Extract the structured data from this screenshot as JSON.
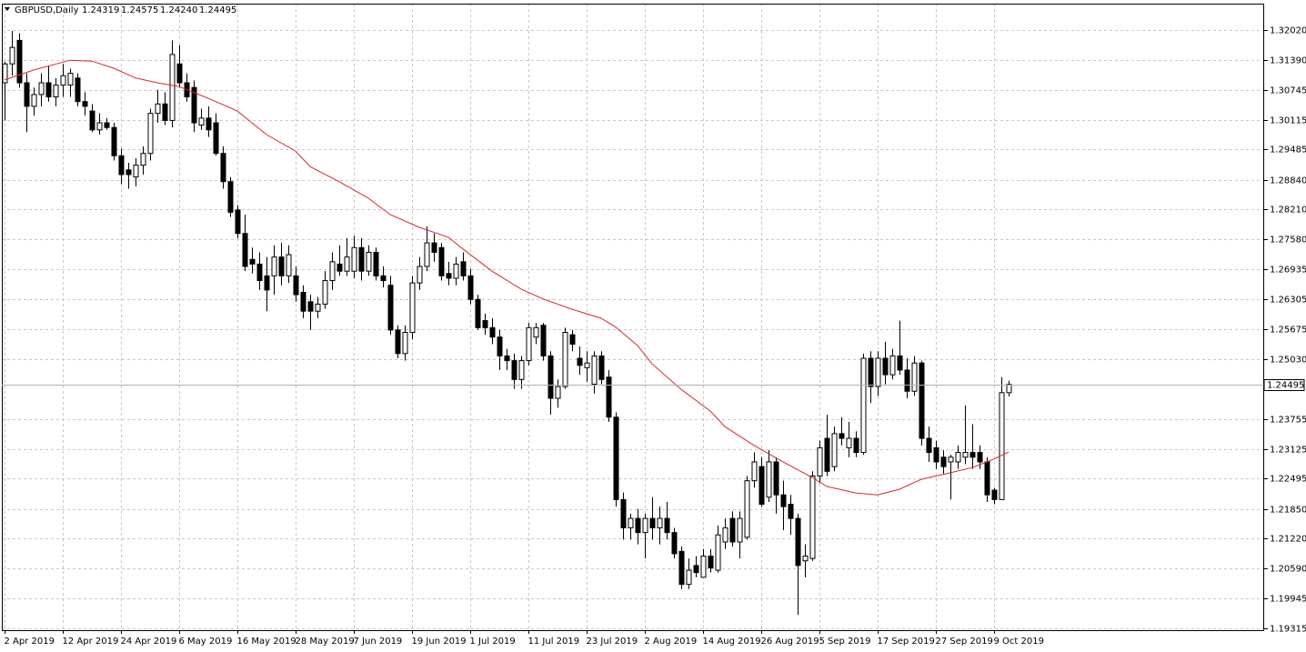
{
  "chart_data": {
    "type": "candlestick",
    "symbol": "GBPUSD,Daily",
    "last_labels": {
      "open": "1.24319",
      "high": "1.24575",
      "low": "1.24240",
      "close": "1.24495"
    },
    "categories": [
      "2 Apr 2019",
      null,
      null,
      null,
      null,
      null,
      null,
      null,
      "12 Apr 2019",
      null,
      null,
      null,
      null,
      null,
      null,
      null,
      "24 Apr 2019",
      null,
      null,
      null,
      null,
      null,
      null,
      null,
      "6 May 2019",
      null,
      null,
      null,
      null,
      null,
      null,
      null,
      "16 May 2019",
      null,
      null,
      null,
      null,
      null,
      null,
      null,
      "28 May 2019",
      null,
      null,
      null,
      null,
      null,
      null,
      null,
      "7 Jun 2019",
      null,
      null,
      null,
      null,
      null,
      null,
      null,
      "19 Jun 2019",
      null,
      null,
      null,
      null,
      null,
      null,
      null,
      "1 Jul 2019",
      null,
      null,
      null,
      null,
      null,
      null,
      null,
      "11 Jul 2019",
      null,
      null,
      null,
      null,
      null,
      null,
      null,
      "23 Jul 2019",
      null,
      null,
      null,
      null,
      null,
      null,
      null,
      "2 Aug 2019",
      null,
      null,
      null,
      null,
      null,
      null,
      null,
      "14 Aug 2019",
      null,
      null,
      null,
      null,
      null,
      null,
      null,
      "26 Aug 2019",
      null,
      null,
      null,
      null,
      null,
      null,
      null,
      "5 Sep 2019",
      null,
      null,
      null,
      null,
      null,
      null,
      null,
      "17 Sep 2019",
      null,
      null,
      null,
      null,
      null,
      null,
      null,
      "27 Sep 2019",
      null,
      null,
      null,
      null,
      null,
      null,
      null,
      "9 Oct 2019",
      null,
      null
    ],
    "open": [
      1.309,
      1.313,
      1.318,
      1.309,
      1.304,
      1.3065,
      1.309,
      1.306,
      1.3085,
      1.3085,
      1.31,
      1.305,
      1.303,
      1.299,
      1.3005,
      1.2995,
      1.2935,
      1.2905,
      1.289,
      1.2915,
      1.294,
      1.3025,
      1.3045,
      1.301,
      1.313,
      1.309,
      1.308,
      1.3,
      1.3015,
      1.3005,
      1.294,
      1.288,
      1.282,
      1.277,
      1.2715,
      1.2705,
      1.268,
      1.268,
      1.272,
      1.268,
      1.268,
      1.2645,
      1.2625,
      1.2605,
      1.262,
      1.267,
      1.2705,
      1.269,
      1.269,
      1.274,
      1.269,
      1.273,
      1.268,
      1.266,
      1.2565,
      1.2515,
      1.256,
      1.2665,
      1.27,
      1.275,
      1.274,
      1.2685,
      1.2675,
      1.271,
      1.268,
      1.263,
      1.2585,
      1.257,
      1.255,
      1.251,
      1.25,
      1.246,
      1.25,
      1.255,
      1.2575,
      1.251,
      1.242,
      1.2445,
      1.2555,
      1.2505,
      1.2485,
      1.245,
      1.251,
      1.2465,
      1.238,
      1.2205,
      1.2145,
      1.2165,
      1.2135,
      1.2165,
      1.2145,
      1.2165,
      1.2135,
      1.2095,
      1.2025,
      1.2065,
      1.204,
      1.2085,
      1.2055,
      1.2115,
      1.2165,
      1.2115,
      1.2125,
      1.2245,
      1.2275,
      1.221,
      1.2285,
      1.2215,
      1.2195,
      1.2165,
      1.2075,
      1.208,
      1.2255,
      1.2335,
      1.2275,
      1.2345,
      1.2315,
      1.2335,
      1.2305,
      1.2505,
      1.2445,
      1.2505,
      1.247,
      1.251,
      1.248,
      1.2435,
      1.2495,
      1.2335,
      1.2315,
      1.2295,
      1.2285,
      1.2285,
      1.2295,
      1.2305,
      1.2305,
      1.2285,
      1.2225,
      1.2205,
      1.24319
    ],
    "high": [
      1.3135,
      1.32,
      1.3195,
      1.311,
      1.308,
      1.311,
      1.3125,
      1.31,
      1.313,
      1.312,
      1.311,
      1.307,
      1.3045,
      1.3025,
      1.3015,
      1.3005,
      1.295,
      1.292,
      1.293,
      1.2955,
      1.3035,
      1.3075,
      1.307,
      1.318,
      1.317,
      1.311,
      1.3095,
      1.3035,
      1.304,
      1.3025,
      1.2955,
      1.289,
      1.283,
      1.281,
      1.274,
      1.273,
      1.272,
      1.2745,
      1.275,
      1.2745,
      1.27,
      1.266,
      1.264,
      1.2635,
      1.269,
      1.273,
      1.2745,
      1.276,
      1.2765,
      1.276,
      1.2745,
      1.274,
      1.27,
      1.268,
      1.2575,
      1.2575,
      1.268,
      1.272,
      1.2785,
      1.277,
      1.275,
      1.271,
      1.272,
      1.273,
      1.2695,
      1.264,
      1.26,
      1.259,
      1.2565,
      1.2525,
      1.2515,
      1.251,
      1.258,
      1.258,
      1.258,
      1.252,
      1.246,
      1.257,
      1.2565,
      1.253,
      1.252,
      1.252,
      1.252,
      1.248,
      1.239,
      1.222,
      1.2175,
      1.2185,
      1.2175,
      1.221,
      1.219,
      1.22,
      1.2145,
      1.2105,
      1.208,
      1.2085,
      1.21,
      1.21,
      1.215,
      1.2165,
      1.218,
      1.218,
      1.2255,
      1.2305,
      1.2295,
      1.231,
      1.2295,
      1.2245,
      1.2215,
      1.2175,
      1.211,
      1.2265,
      1.233,
      1.2385,
      1.236,
      1.238,
      1.237,
      1.235,
      1.2515,
      1.252,
      1.252,
      1.254,
      1.2525,
      1.2585,
      1.2505,
      1.251,
      1.25,
      1.236,
      1.233,
      1.231,
      1.23,
      1.232,
      1.2405,
      1.2365,
      1.232,
      1.2295,
      1.223,
      1.2465,
      1.24575
    ],
    "low": [
      1.301,
      1.3105,
      1.308,
      1.2985,
      1.302,
      1.304,
      1.305,
      1.304,
      1.306,
      1.306,
      1.304,
      1.302,
      1.2985,
      1.298,
      1.299,
      1.2925,
      1.2875,
      1.2865,
      1.287,
      1.2895,
      1.2925,
      1.3005,
      1.3,
      1.2995,
      1.308,
      1.305,
      1.2985,
      1.299,
      1.2975,
      1.2935,
      1.2865,
      1.2805,
      1.276,
      1.269,
      1.2685,
      1.265,
      1.2605,
      1.264,
      1.266,
      1.2665,
      1.2625,
      1.259,
      1.2565,
      1.259,
      1.261,
      1.265,
      1.268,
      1.268,
      1.2675,
      1.267,
      1.268,
      1.267,
      1.2655,
      1.2555,
      1.2505,
      1.25,
      1.2545,
      1.265,
      1.269,
      1.271,
      1.267,
      1.266,
      1.266,
      1.267,
      1.262,
      1.2565,
      1.2555,
      1.2535,
      1.248,
      1.248,
      1.244,
      1.244,
      1.249,
      1.2535,
      1.25,
      1.2385,
      1.24,
      1.244,
      1.252,
      1.247,
      1.2455,
      1.243,
      1.245,
      1.237,
      1.219,
      1.212,
      1.212,
      1.211,
      1.208,
      1.212,
      1.211,
      1.212,
      1.208,
      1.2015,
      1.2015,
      1.204,
      1.204,
      1.205,
      1.205,
      1.21,
      1.2105,
      1.208,
      1.212,
      1.223,
      1.219,
      1.22,
      1.2175,
      1.214,
      1.213,
      1.196,
      1.204,
      1.2075,
      1.224,
      1.2255,
      1.2265,
      1.232,
      1.2295,
      1.2295,
      1.23,
      1.241,
      1.2425,
      1.245,
      1.246,
      1.247,
      1.242,
      1.2425,
      1.232,
      1.2285,
      1.227,
      1.226,
      1.2205,
      1.227,
      1.228,
      1.227,
      1.227,
      1.22,
      1.2195,
      1.2205,
      1.2424
    ],
    "close": [
      1.313,
      1.3165,
      1.309,
      1.304,
      1.3065,
      1.309,
      1.306,
      1.3085,
      1.3105,
      1.311,
      1.305,
      1.304,
      1.299,
      1.3005,
      1.2995,
      1.2935,
      1.2895,
      1.2895,
      1.2915,
      1.294,
      1.3025,
      1.3045,
      1.301,
      1.315,
      1.309,
      1.306,
      1.3005,
      1.3015,
      1.299,
      1.294,
      1.288,
      1.2815,
      1.277,
      1.27,
      1.2705,
      1.267,
      1.265,
      1.272,
      1.268,
      1.2725,
      1.264,
      1.2605,
      1.2605,
      1.262,
      1.267,
      1.271,
      1.269,
      1.272,
      1.274,
      1.269,
      1.273,
      1.268,
      1.267,
      1.2565,
      1.2515,
      1.256,
      1.2665,
      1.27,
      1.275,
      1.273,
      1.268,
      1.2675,
      1.2705,
      1.268,
      1.263,
      1.257,
      1.257,
      1.255,
      1.251,
      1.25,
      1.246,
      1.25,
      1.257,
      1.257,
      1.251,
      1.242,
      1.2445,
      1.256,
      1.2535,
      1.249,
      1.2495,
      1.251,
      1.246,
      1.238,
      1.2205,
      1.2145,
      1.2165,
      1.2135,
      1.2165,
      1.2145,
      1.2165,
      1.2135,
      1.209,
      1.2025,
      1.2055,
      1.205,
      1.2085,
      1.206,
      1.213,
      1.2145,
      1.2115,
      1.2165,
      1.2245,
      1.2285,
      1.2195,
      1.2285,
      1.2215,
      1.219,
      1.2165,
      1.2065,
      1.2085,
      1.2255,
      1.2315,
      1.2265,
      1.2345,
      1.2335,
      1.2335,
      1.2305,
      1.2505,
      1.2445,
      1.2505,
      1.247,
      1.251,
      1.248,
      1.2435,
      1.2495,
      1.2335,
      1.2305,
      1.2285,
      1.2275,
      1.2295,
      1.2305,
      1.2305,
      1.2295,
      1.2285,
      1.2215,
      1.2205,
      1.2432,
      1.24495
    ],
    "up_color": "#ffffff",
    "down_color": "#000000",
    "ma": {
      "color": "#d42a2a",
      "x": [
        0,
        4,
        9,
        12,
        15,
        18,
        21,
        24,
        28,
        32,
        36,
        40,
        42,
        46,
        50,
        53,
        57,
        61,
        63,
        67,
        71,
        74,
        78,
        82,
        84,
        87,
        89,
        93,
        97,
        99,
        103,
        107,
        111,
        113,
        117,
        120,
        123,
        126,
        130,
        133,
        136,
        138
      ],
      "values": [
        1.3096,
        1.3117,
        1.3138,
        1.3136,
        1.3121,
        1.31,
        1.309,
        1.3082,
        1.3057,
        1.303,
        1.298,
        1.2945,
        1.2912,
        1.288,
        1.2845,
        1.281,
        1.2783,
        1.2762,
        1.2737,
        1.269,
        1.2652,
        1.2631,
        1.2609,
        1.259,
        1.2571,
        1.2532,
        1.2493,
        1.2439,
        1.2393,
        1.236,
        1.232,
        1.2285,
        1.2252,
        1.2233,
        1.2219,
        1.2215,
        1.2227,
        1.2248,
        1.2262,
        1.2273,
        1.2291,
        1.2306
      ]
    },
    "ylim": [
      1.19277,
      1.3258
    ],
    "yticks": [
      {
        "value": 1.3202,
        "label": "1.32020"
      },
      {
        "value": 1.3139,
        "label": "1.31390"
      },
      1.30745,
      1.30115,
      1.29485,
      {
        "value": 1.2884,
        "label": "1.28840"
      },
      {
        "value": 1.2821,
        "label": "1.28210"
      },
      {
        "value": 1.2758,
        "label": "1.27580"
      },
      1.26935,
      1.26305,
      1.25675,
      {
        "value": 1.2503,
        "label": "1.25030"
      },
      1.23755,
      1.23125,
      1.22495,
      {
        "value": 1.2185,
        "label": "1.21850"
      },
      {
        "value": 1.2122,
        "label": "1.21220"
      },
      {
        "value": 1.2059,
        "label": "1.20590"
      },
      1.19945,
      1.19315
    ],
    "grid": true
  }
}
